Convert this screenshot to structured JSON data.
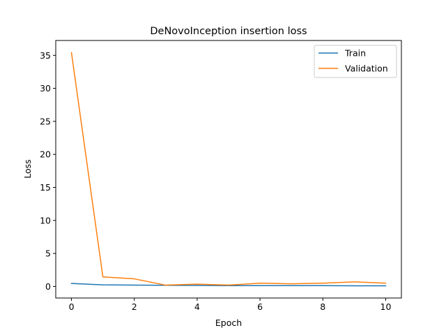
{
  "chart_data": {
    "type": "line",
    "title": "DeNovoInception insertion loss",
    "xlabel": "Epoch",
    "ylabel": "Loss",
    "xlim": [
      -0.5,
      10.5
    ],
    "ylim": [
      -1.75,
      37.25
    ],
    "xticks": [
      0,
      2,
      4,
      6,
      8,
      10
    ],
    "yticks": [
      0,
      5,
      10,
      15,
      20,
      25,
      30,
      35
    ],
    "grid": false,
    "legend_position": "top-right",
    "series": [
      {
        "name": "Train",
        "color": "#1f77b4",
        "x": [
          0,
          1,
          2,
          3,
          4,
          5,
          6,
          7,
          8,
          9,
          10
        ],
        "values": [
          0.45,
          0.25,
          0.2,
          0.18,
          0.15,
          0.12,
          0.12,
          0.12,
          0.12,
          0.1,
          0.1
        ]
      },
      {
        "name": "Validation",
        "color": "#ff7f0e",
        "x": [
          0,
          1,
          2,
          3,
          4,
          5,
          6,
          7,
          8,
          9,
          10
        ],
        "values": [
          35.4,
          1.45,
          1.15,
          0.2,
          0.35,
          0.2,
          0.5,
          0.4,
          0.5,
          0.7,
          0.5
        ]
      }
    ]
  }
}
